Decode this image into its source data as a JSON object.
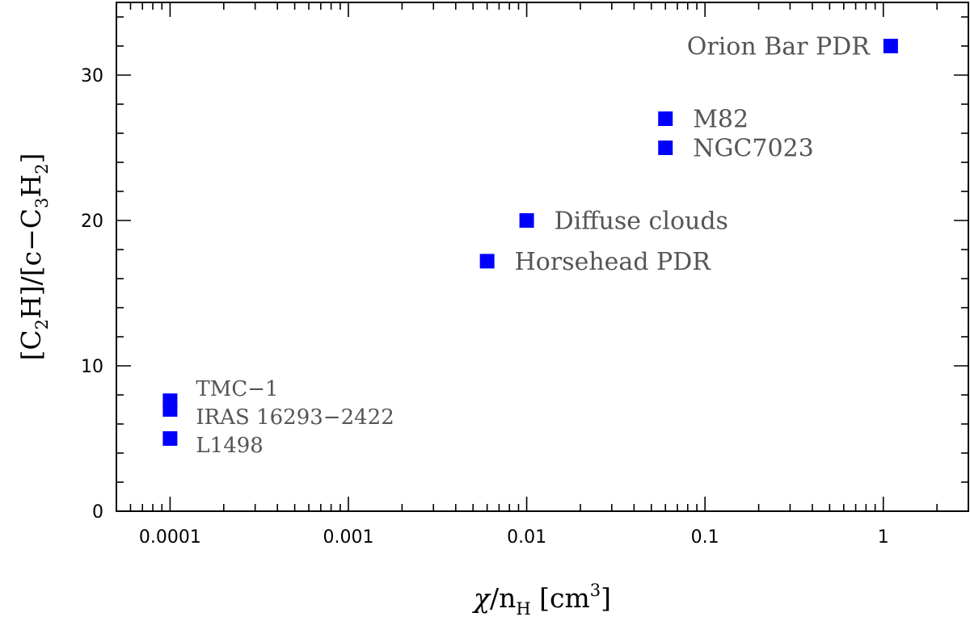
{
  "chart_data": {
    "type": "scatter",
    "title": "",
    "x_scale": "log",
    "xlim": [
      5e-05,
      3
    ],
    "ylim": [
      0,
      35
    ],
    "grid": false,
    "legend": "none",
    "marker_color": "#0000ff",
    "x_ticks": [
      {
        "value": 0.0001,
        "label": "0.0001"
      },
      {
        "value": 0.001,
        "label": "0.001"
      },
      {
        "value": 0.01,
        "label": "0.01"
      },
      {
        "value": 0.1,
        "label": "0.1"
      },
      {
        "value": 1,
        "label": "1"
      }
    ],
    "y_ticks": [
      {
        "value": 0,
        "label": "0"
      },
      {
        "value": 10,
        "label": "10"
      },
      {
        "value": 20,
        "label": "20"
      },
      {
        "value": 30,
        "label": "30"
      }
    ],
    "xlabel": {
      "chi": "χ",
      "slash": "/n",
      "sub": "H",
      "unit": " [cm",
      "sup": "3",
      "close": "]"
    },
    "ylabel": {
      "p1": "[C",
      "s1": "2",
      "p2": "H]/[c−C",
      "s2": "3",
      "p3": "H",
      "s3": "2",
      "p4": "]"
    },
    "points": [
      {
        "name": "Orion Bar PDR",
        "x": 1.1,
        "y": 32,
        "label_side": "left"
      },
      {
        "name": "M82",
        "x": 0.06,
        "y": 27,
        "label_side": "right"
      },
      {
        "name": "NGC7023",
        "x": 0.06,
        "y": 25,
        "label_side": "right"
      },
      {
        "name": "Diffuse clouds",
        "x": 0.01,
        "y": 20,
        "label_side": "right"
      },
      {
        "name": "Horsehead PDR",
        "x": 0.006,
        "y": 17.2,
        "label_side": "right"
      },
      {
        "name": "TMC-1",
        "x": 0.0001,
        "y": 7.6,
        "label_side": "right"
      },
      {
        "name": "IRAS 16293-2422",
        "x": 0.0001,
        "y": 7.0,
        "label_side": "right"
      },
      {
        "name": "L1498",
        "x": 0.0001,
        "y": 5.0,
        "label_side": "right"
      }
    ]
  }
}
